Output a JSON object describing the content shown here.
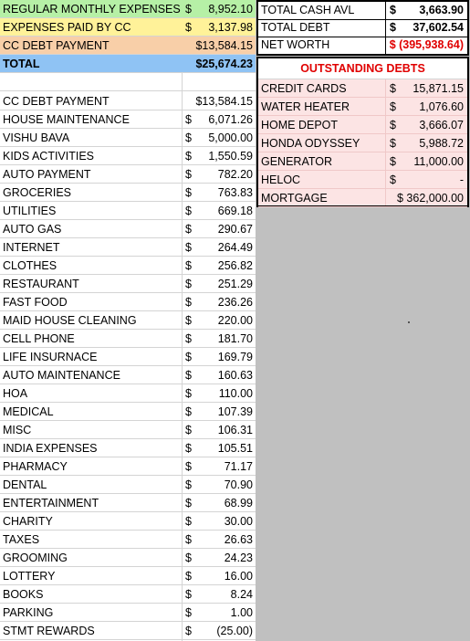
{
  "header_rows": [
    {
      "label": "REGULAR MONTHLY EXPENSES",
      "currency": "$",
      "amount": "8,952.10"
    },
    {
      "label": "EXPENSES PAID BY CC",
      "currency": "$",
      "amount": "3,137.98"
    },
    {
      "label": "CC DEBT PAYMENT",
      "currency": "",
      "amount": "$13,584.15"
    },
    {
      "label": "TOTAL",
      "currency": "",
      "amount": "$25,674.23"
    }
  ],
  "expenses": [
    {
      "label": "CC DEBT PAYMENT",
      "currency": "",
      "amount": "$13,584.15"
    },
    {
      "label": "HOUSE MAINTENANCE",
      "currency": "$",
      "amount": "6,071.26"
    },
    {
      "label": "VISHU BAVA",
      "currency": "$",
      "amount": "5,000.00"
    },
    {
      "label": "KIDS ACTIVITIES",
      "currency": "$",
      "amount": "1,550.59"
    },
    {
      "label": "AUTO PAYMENT",
      "currency": "$",
      "amount": "782.20"
    },
    {
      "label": "GROCERIES",
      "currency": "$",
      "amount": "763.83"
    },
    {
      "label": "UTILITIES",
      "currency": "$",
      "amount": "669.18"
    },
    {
      "label": "AUTO GAS",
      "currency": "$",
      "amount": "290.67"
    },
    {
      "label": "INTERNET",
      "currency": "$",
      "amount": "264.49"
    },
    {
      "label": "CLOTHES",
      "currency": "$",
      "amount": "256.82"
    },
    {
      "label": "RESTAURANT",
      "currency": "$",
      "amount": "251.29"
    },
    {
      "label": "FAST FOOD",
      "currency": "$",
      "amount": "236.26"
    },
    {
      "label": "MAID HOUSE CLEANING",
      "currency": "$",
      "amount": "220.00"
    },
    {
      "label": "CELL PHONE",
      "currency": "$",
      "amount": "181.70"
    },
    {
      "label": "LIFE INSURNACE",
      "currency": "$",
      "amount": "169.79"
    },
    {
      "label": "AUTO MAINTENANCE",
      "currency": "$",
      "amount": "160.63"
    },
    {
      "label": "HOA",
      "currency": "$",
      "amount": "110.00"
    },
    {
      "label": "MEDICAL",
      "currency": "$",
      "amount": "107.39"
    },
    {
      "label": "MISC",
      "currency": "$",
      "amount": "106.31"
    },
    {
      "label": "INDIA EXPENSES",
      "currency": "$",
      "amount": "105.51"
    },
    {
      "label": "PHARMACY",
      "currency": "$",
      "amount": "71.17"
    },
    {
      "label": "DENTAL",
      "currency": "$",
      "amount": "70.90"
    },
    {
      "label": "ENTERTAINMENT",
      "currency": "$",
      "amount": "68.99"
    },
    {
      "label": "CHARITY",
      "currency": "$",
      "amount": "30.00"
    },
    {
      "label": "TAXES",
      "currency": "$",
      "amount": "26.63"
    },
    {
      "label": "GROOMING",
      "currency": "$",
      "amount": "24.23"
    },
    {
      "label": "LOTTERY",
      "currency": "$",
      "amount": "16.00"
    },
    {
      "label": "BOOKS",
      "currency": "$",
      "amount": "8.24"
    },
    {
      "label": "PARKING",
      "currency": "$",
      "amount": "1.00"
    },
    {
      "label": "STMT REWARDS",
      "currency": "$",
      "amount": "(25.00)"
    }
  ],
  "summary": [
    {
      "label": "TOTAL CASH AVL",
      "currency": "$",
      "amount": "3,663.90"
    },
    {
      "label": "TOTAL DEBT",
      "currency": "$",
      "amount": "37,602.54"
    },
    {
      "label": "NET WORTH",
      "currency": "",
      "amount": "$ (395,938.64)"
    }
  ],
  "debts": {
    "title": "OUTSTANDING DEBTS",
    "rows": [
      {
        "label": "CREDIT CARDS",
        "currency": "$",
        "amount": "15,871.15"
      },
      {
        "label": "WATER HEATER",
        "currency": "$",
        "amount": "1,076.60"
      },
      {
        "label": "HOME DEPOT",
        "currency": "$",
        "amount": "3,666.07"
      },
      {
        "label": "HONDA ODYSSEY",
        "currency": "$",
        "amount": "5,988.72"
      },
      {
        "label": "GENERATOR",
        "currency": "$",
        "amount": "11,000.00"
      },
      {
        "label": "HELOC",
        "currency": "$",
        "amount": "-"
      },
      {
        "label": "MORTGAGE",
        "currency": "",
        "amount": "$ 362,000.00"
      }
    ]
  }
}
